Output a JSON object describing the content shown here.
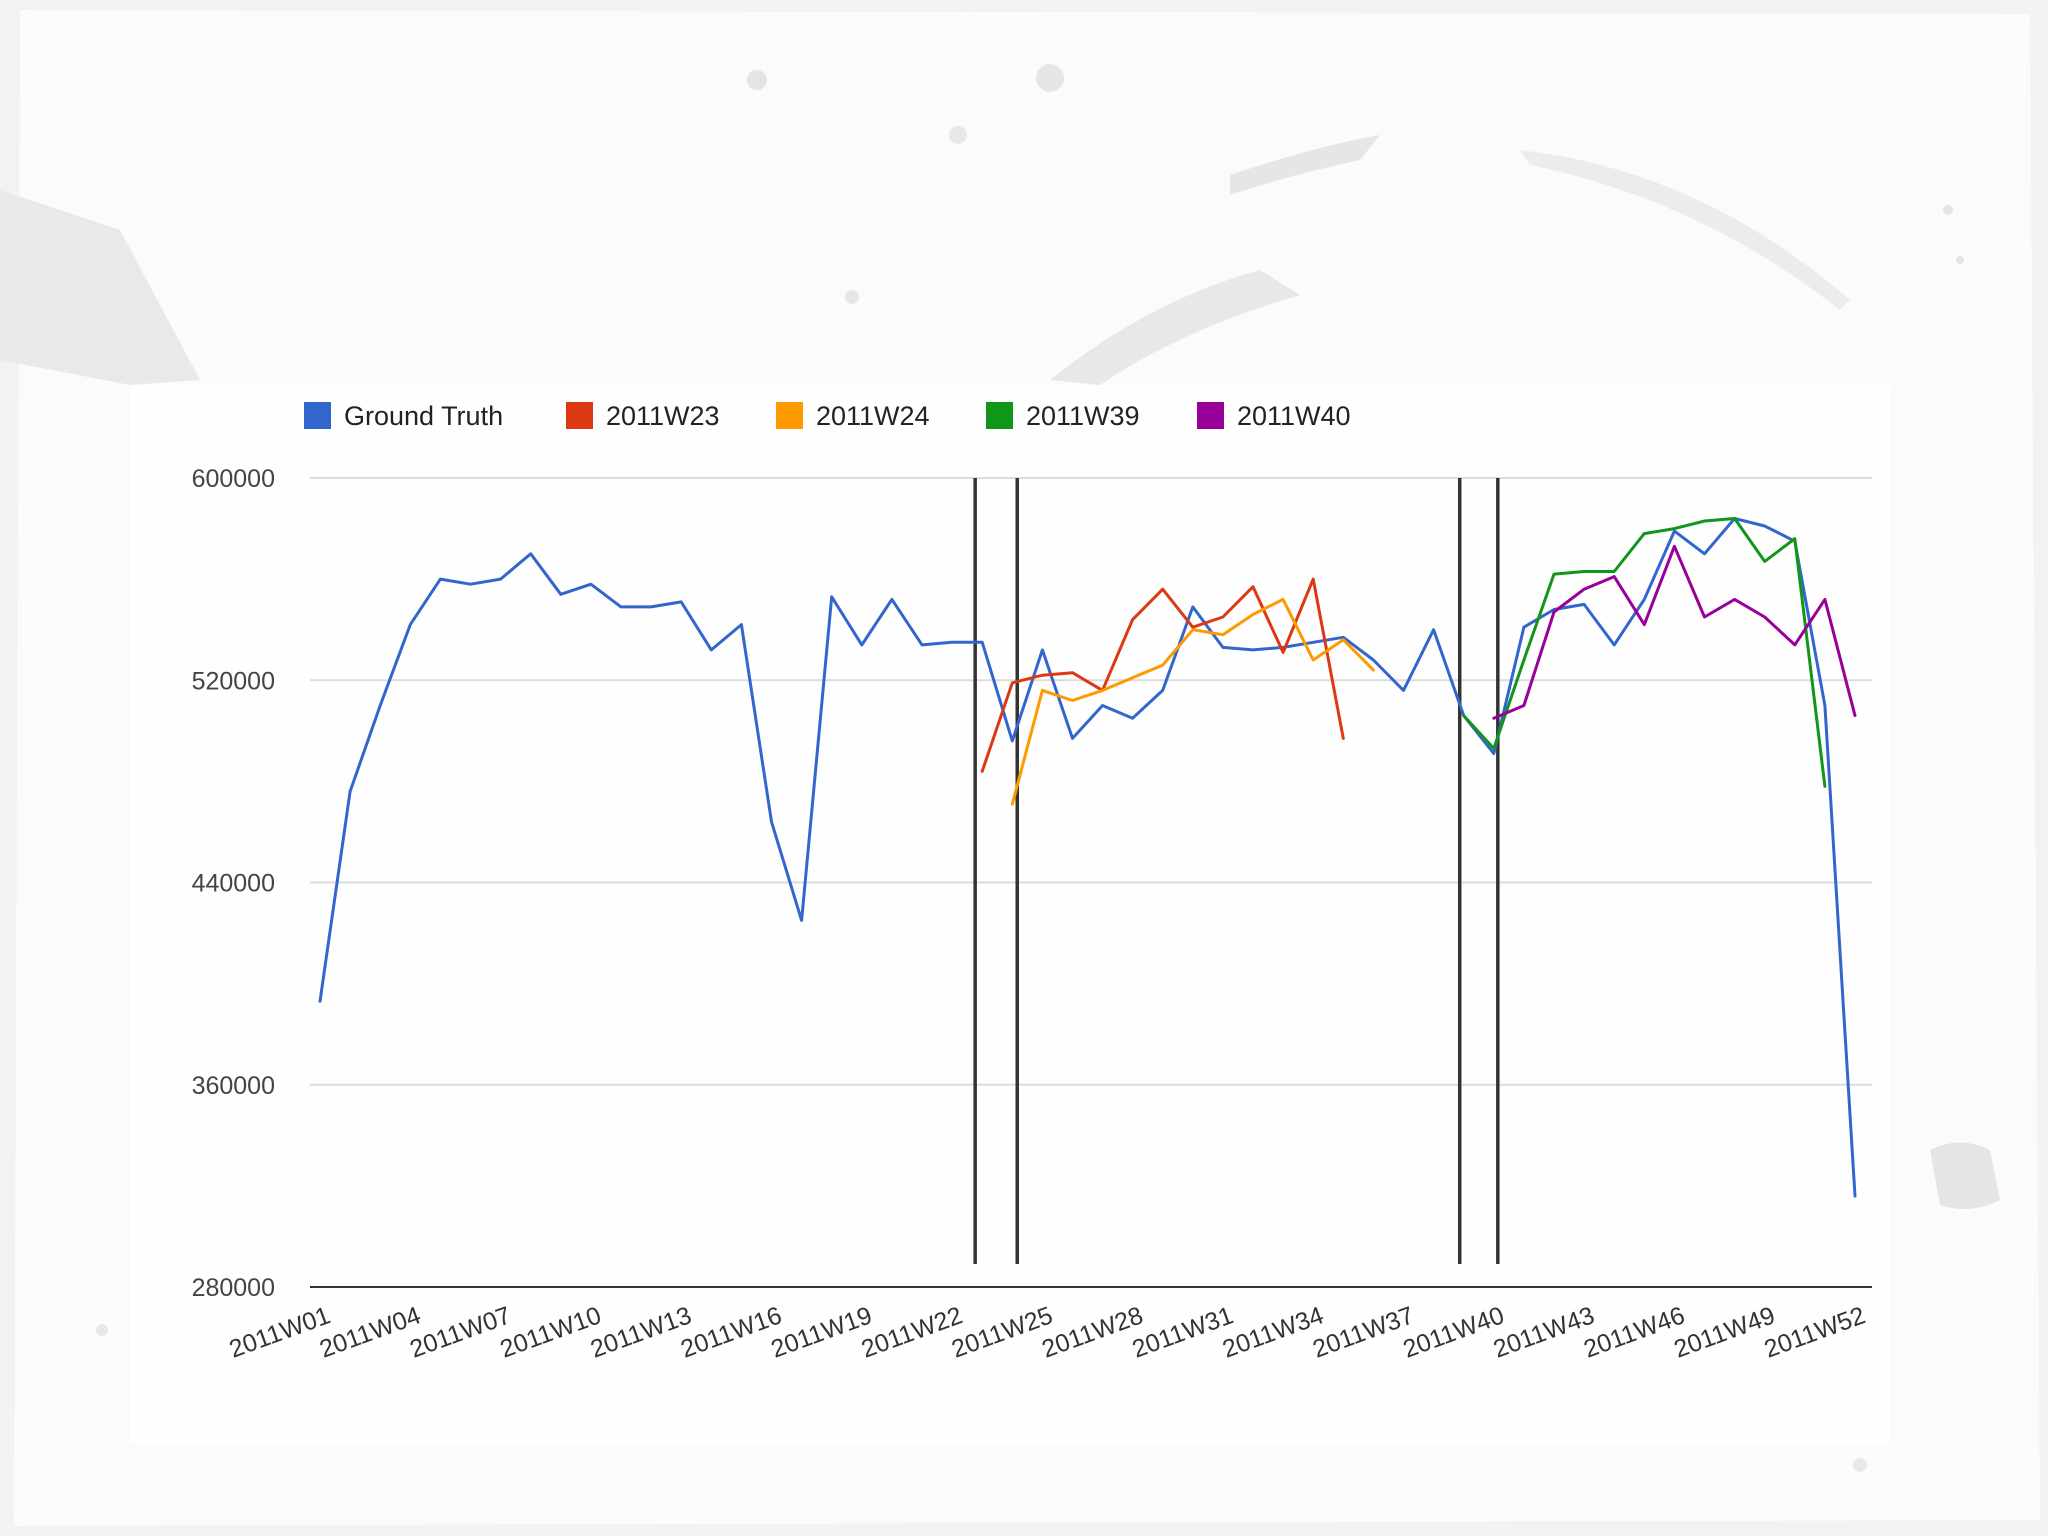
{
  "chart_data": {
    "type": "line",
    "title": "",
    "xlabel": "",
    "ylabel": "",
    "ylim": [
      280000,
      600000
    ],
    "yticks": [
      280000,
      360000,
      440000,
      520000,
      600000
    ],
    "ytick_labels": [
      "280000",
      "360000",
      "440000",
      "520000",
      "600000"
    ],
    "x_categories": [
      "2011W01",
      "2011W02",
      "2011W03",
      "2011W04",
      "2011W05",
      "2011W06",
      "2011W07",
      "2011W08",
      "2011W09",
      "2011W10",
      "2011W11",
      "2011W12",
      "2011W13",
      "2011W14",
      "2011W15",
      "2011W16",
      "2011W17",
      "2011W18",
      "2011W19",
      "2011W20",
      "2011W21",
      "2011W22",
      "2011W23",
      "2011W24",
      "2011W25",
      "2011W26",
      "2011W27",
      "2011W28",
      "2011W29",
      "2011W30",
      "2011W31",
      "2011W32",
      "2011W33",
      "2011W34",
      "2011W35",
      "2011W36",
      "2011W37",
      "2011W38",
      "2011W39",
      "2011W40",
      "2011W41",
      "2011W42",
      "2011W43",
      "2011W44",
      "2011W45",
      "2011W46",
      "2011W47",
      "2011W48",
      "2011W49",
      "2011W50",
      "2011W51",
      "2011W52"
    ],
    "xtick_labels": [
      "2011W01",
      "2011W04",
      "2011W07",
      "2011W10",
      "2011W13",
      "2011W16",
      "2011W19",
      "2011W22",
      "2011W25",
      "2011W28",
      "2011W31",
      "2011W34",
      "2011W37",
      "2011W40",
      "2011W43",
      "2011W46",
      "2011W49",
      "2011W52"
    ],
    "grid": true,
    "legend_position": "top-left",
    "series": [
      {
        "name": "Ground Truth",
        "color": "#3366cc",
        "x": [
          "2011W01",
          "2011W02",
          "2011W03",
          "2011W04",
          "2011W05",
          "2011W06",
          "2011W07",
          "2011W08",
          "2011W09",
          "2011W10",
          "2011W11",
          "2011W12",
          "2011W13",
          "2011W14",
          "2011W15",
          "2011W16",
          "2011W17",
          "2011W18",
          "2011W19",
          "2011W20",
          "2011W21",
          "2011W22",
          "2011W23",
          "2011W24",
          "2011W25",
          "2011W26",
          "2011W27",
          "2011W28",
          "2011W29",
          "2011W30",
          "2011W31",
          "2011W32",
          "2011W33",
          "2011W34",
          "2011W35",
          "2011W36",
          "2011W37",
          "2011W38",
          "2011W39",
          "2011W40",
          "2011W41",
          "2011W42",
          "2011W43",
          "2011W44",
          "2011W45",
          "2011W46",
          "2011W47",
          "2011W48",
          "2011W49",
          "2011W50",
          "2011W51",
          "2011W52"
        ],
        "values": [
          393000,
          476000,
          510000,
          542000,
          560000,
          558000,
          560000,
          570000,
          554000,
          558000,
          549000,
          549000,
          551000,
          532000,
          542000,
          464000,
          425000,
          553000,
          534000,
          552000,
          534000,
          535000,
          535000,
          496000,
          532000,
          497000,
          510000,
          505000,
          516000,
          549000,
          533000,
          532000,
          533000,
          535000,
          537000,
          528000,
          516000,
          540000,
          506000,
          491000,
          541000,
          548000,
          550000,
          534000,
          552000,
          579000,
          570000,
          584000,
          581000,
          575000,
          510000,
          316000
        ]
      },
      {
        "name": "2011W23",
        "color": "#dc3912",
        "x": [
          "2011W23",
          "2011W24",
          "2011W25",
          "2011W26",
          "2011W27",
          "2011W28",
          "2011W29",
          "2011W30",
          "2011W31",
          "2011W32",
          "2011W33",
          "2011W34",
          "2011W35"
        ],
        "values": [
          484000,
          519000,
          522000,
          523000,
          516000,
          544000,
          556000,
          541000,
          545000,
          557000,
          531000,
          560000,
          497000
        ]
      },
      {
        "name": "2011W24",
        "color": "#ff9900",
        "x": [
          "2011W24",
          "2011W25",
          "2011W26",
          "2011W27",
          "2011W28",
          "2011W29",
          "2011W30",
          "2011W31",
          "2011W32",
          "2011W33",
          "2011W34",
          "2011W35",
          "2011W36"
        ],
        "values": [
          471000,
          516000,
          512000,
          516000,
          521000,
          526000,
          540000,
          538000,
          546000,
          552000,
          528000,
          536000,
          524000
        ]
      },
      {
        "name": "2011W39",
        "color": "#109618",
        "x": [
          "2011W39",
          "2011W40",
          "2011W41",
          "2011W42",
          "2011W43",
          "2011W44",
          "2011W45",
          "2011W46",
          "2011W47",
          "2011W48",
          "2011W49",
          "2011W50",
          "2011W51"
        ],
        "values": [
          506000,
          493000,
          528000,
          562000,
          563000,
          563000,
          578000,
          580000,
          583000,
          584000,
          567000,
          576000,
          478000
        ]
      },
      {
        "name": "2011W40",
        "color": "#990099",
        "x": [
          "2011W40",
          "2011W41",
          "2011W42",
          "2011W43",
          "2011W44",
          "2011W45",
          "2011W46",
          "2011W47",
          "2011W48",
          "2011W49",
          "2011W50",
          "2011W51",
          "2011W52"
        ],
        "values": [
          505000,
          510000,
          547000,
          556000,
          561000,
          542000,
          573000,
          545000,
          552000,
          545000,
          534000,
          552000,
          506000
        ]
      }
    ],
    "vertical_markers": [
      "2011W23",
      "2011W24",
      "2011W39",
      "2011W40"
    ]
  }
}
